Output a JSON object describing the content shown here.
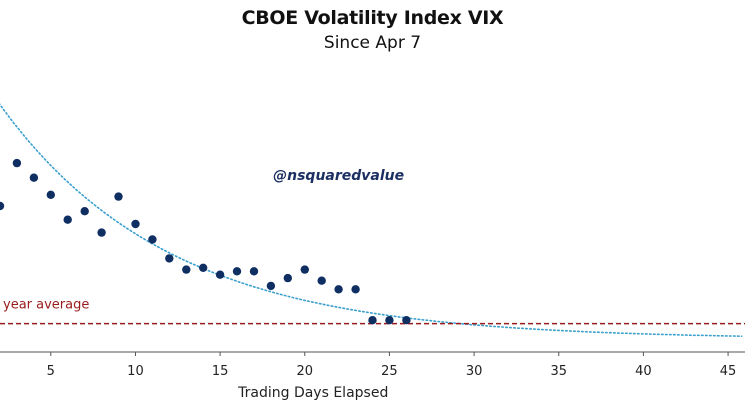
{
  "chart_data": {
    "type": "scatter",
    "title": "CBOE Volatility Index VIX",
    "subtitle": "Since Apr 7",
    "xlabel": "Trading Days Elapsed",
    "ylabel": "",
    "xlim": [
      2,
      46
    ],
    "ylim": [
      16,
      50
    ],
    "x_ticks": [
      5,
      10,
      15,
      20,
      25,
      30,
      35,
      40,
      45
    ],
    "series": [
      {
        "name": "VIX",
        "color": "#0f2f63",
        "x": [
          2,
          3,
          4,
          5,
          6,
          7,
          8,
          9,
          10,
          11,
          12,
          13,
          14,
          15,
          16,
          17,
          18,
          19,
          20,
          21,
          22,
          23,
          24,
          25,
          26
        ],
        "y": [
          33.0,
          38.0,
          36.3,
          34.3,
          31.4,
          32.4,
          29.9,
          34.1,
          30.9,
          29.1,
          26.9,
          25.6,
          25.8,
          25.0,
          25.4,
          25.4,
          23.7,
          24.6,
          25.6,
          24.3,
          23.3,
          23.3,
          19.7,
          19.7,
          19.7
        ]
      }
    ],
    "trendline": {
      "color": "#3a9fcf",
      "style": "dotted",
      "type": "exponential decay"
    },
    "reference_line": {
      "label": "year average",
      "value": 19.3,
      "color": "#9a1b1b",
      "style": "dashed"
    },
    "annotation": "@nsquaredvalue"
  }
}
